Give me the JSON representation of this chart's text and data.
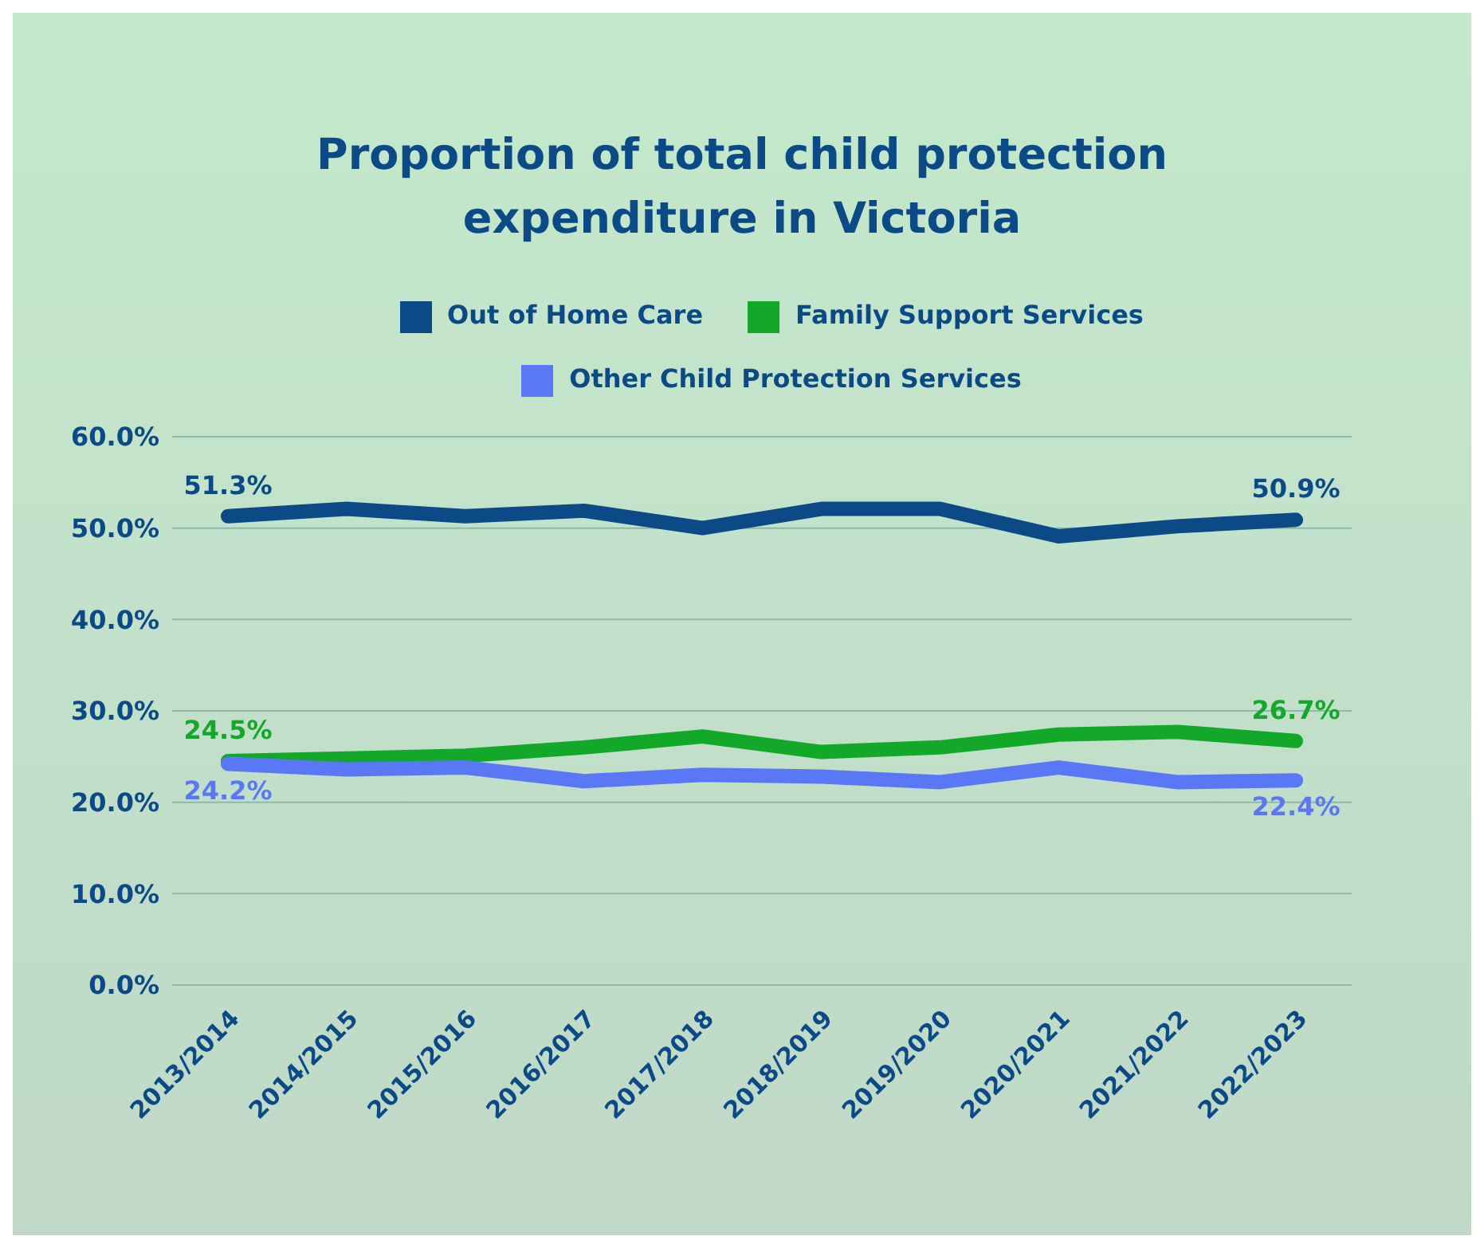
{
  "chart_data": {
    "type": "line",
    "title": "Proportion of total child protection expenditure in Victoria",
    "categories": [
      "2013/2014",
      "2014/2015",
      "2015/2016",
      "2016/2017",
      "2017/2018",
      "2018/2019",
      "2019/2020",
      "2020/2021",
      "2021/2022",
      "2022/2023"
    ],
    "series": [
      {
        "name": "Out of Home Care",
        "color": "#0b4a86",
        "values": [
          51.3,
          52.1,
          51.3,
          51.9,
          50.0,
          52.1,
          52.1,
          49.1,
          50.2,
          50.9
        ],
        "value_labels": [
          "51.3%",
          null,
          null,
          null,
          null,
          null,
          null,
          null,
          null,
          "50.9%"
        ]
      },
      {
        "name": "Family Support Services",
        "color": "#13a82a",
        "values": [
          24.5,
          24.8,
          25.1,
          26.0,
          27.2,
          25.5,
          26.0,
          27.4,
          27.7,
          26.7
        ],
        "value_labels": [
          "24.5%",
          null,
          null,
          null,
          null,
          null,
          null,
          null,
          null,
          "26.7%"
        ]
      },
      {
        "name": "Other Child Protection Services",
        "color": "#5a78f5",
        "values": [
          24.2,
          23.6,
          23.8,
          22.3,
          23.0,
          22.8,
          22.2,
          23.8,
          22.2,
          22.4
        ],
        "value_labels": [
          "24.2%",
          null,
          null,
          null,
          null,
          null,
          null,
          null,
          null,
          "22.4%"
        ]
      }
    ],
    "ylim": [
      0,
      60
    ],
    "yticks": [
      {
        "value": 0,
        "label": "0.0%"
      },
      {
        "value": 10,
        "label": "10.0%"
      },
      {
        "value": 20,
        "label": "20.0%"
      },
      {
        "value": 30,
        "label": "30.0%"
      },
      {
        "value": 40,
        "label": "40.0%"
      },
      {
        "value": 50,
        "label": "50.0%"
      },
      {
        "value": 60,
        "label": "60.0%"
      }
    ],
    "grid": "y",
    "legend": "top",
    "marker": "none",
    "line_style": "solid"
  }
}
